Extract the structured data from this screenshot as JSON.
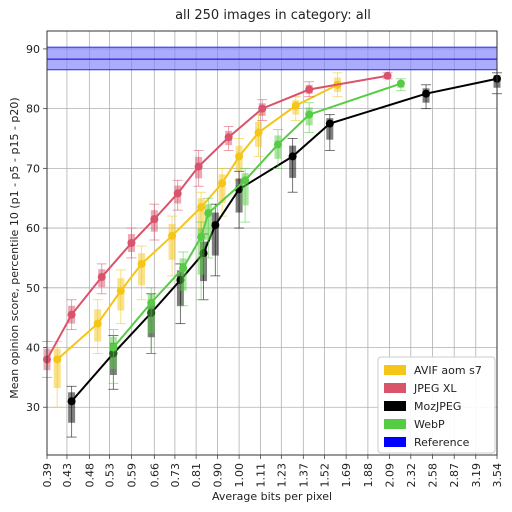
{
  "chart_data": {
    "type": "line",
    "title": "all 250 images in category: all",
    "xlabel": "Average bits per pixel",
    "ylabel": "Mean opinion score, percentile 10 (p1 - p5 - p15 - p20)",
    "x_ticks": [
      "0.39",
      "0.43",
      "0.48",
      "0.53",
      "0.59",
      "0.66",
      "0.73",
      "0.81",
      "0.90",
      "1.00",
      "1.11",
      "1.23",
      "1.37",
      "1.52",
      "1.69",
      "1.88",
      "2.09",
      "2.32",
      "2.58",
      "2.87",
      "3.19",
      "3.54"
    ],
    "x_scale": "log",
    "xlim": [
      0.39,
      3.54
    ],
    "ylim": [
      22,
      93
    ],
    "y_ticks": [
      30,
      40,
      50,
      60,
      70,
      80,
      90
    ],
    "grid": true,
    "legend_position": "bottom-right",
    "reference_band": {
      "name": "Reference",
      "low": 86.5,
      "high": 90.3,
      "center": 88.3,
      "color": "#0000ff"
    },
    "series": [
      {
        "name": "AVIF aom s7",
        "color": "#f5c518",
        "points": [
          {
            "x": 0.41,
            "y": 38,
            "p1": 30,
            "p20": 41
          },
          {
            "x": 0.5,
            "y": 44,
            "p1": 39,
            "p20": 48
          },
          {
            "x": 0.56,
            "y": 49.5,
            "p1": 44,
            "p20": 53
          },
          {
            "x": 0.62,
            "y": 54,
            "p1": 48,
            "p20": 57
          },
          {
            "x": 0.72,
            "y": 58.7,
            "p1": 52,
            "p20": 62
          },
          {
            "x": 0.83,
            "y": 63.5,
            "p1": 55,
            "p20": 66
          },
          {
            "x": 0.92,
            "y": 67.5,
            "p1": 62,
            "p20": 70
          },
          {
            "x": 1.0,
            "y": 72,
            "p1": 68,
            "p20": 75
          },
          {
            "x": 1.1,
            "y": 76,
            "p1": 72,
            "p20": 79
          },
          {
            "x": 1.32,
            "y": 80.5,
            "p1": 78,
            "p20": 82
          },
          {
            "x": 1.62,
            "y": 84,
            "p1": 82,
            "p20": 86
          }
        ]
      },
      {
        "name": "JPEG XL",
        "color": "#d9536a",
        "points": [
          {
            "x": 0.39,
            "y": 38,
            "p1": 35,
            "p20": 41
          },
          {
            "x": 0.44,
            "y": 45.5,
            "p1": 43,
            "p20": 48
          },
          {
            "x": 0.51,
            "y": 51.8,
            "p1": 49,
            "p20": 54
          },
          {
            "x": 0.59,
            "y": 57.5,
            "p1": 55,
            "p20": 60
          },
          {
            "x": 0.66,
            "y": 61.5,
            "p1": 58,
            "p20": 64
          },
          {
            "x": 0.74,
            "y": 65.8,
            "p1": 63,
            "p20": 68
          },
          {
            "x": 0.82,
            "y": 70.3,
            "p1": 67,
            "p20": 73
          },
          {
            "x": 0.95,
            "y": 75.2,
            "p1": 73,
            "p20": 77
          },
          {
            "x": 1.12,
            "y": 80,
            "p1": 78,
            "p20": 81.5
          },
          {
            "x": 1.41,
            "y": 83.2,
            "p1": 82,
            "p20": 84.5
          },
          {
            "x": 2.07,
            "y": 85.5,
            "p1": 85,
            "p20": 86
          }
        ]
      },
      {
        "name": "MozJPEG",
        "color": "#000000",
        "points": [
          {
            "x": 0.44,
            "y": 31,
            "p1": 25,
            "p20": 33.5
          },
          {
            "x": 0.54,
            "y": 39,
            "p1": 33,
            "p20": 42
          },
          {
            "x": 0.65,
            "y": 45.8,
            "p1": 39,
            "p20": 49
          },
          {
            "x": 0.75,
            "y": 51.3,
            "p1": 44,
            "p20": 54
          },
          {
            "x": 0.84,
            "y": 55.8,
            "p1": 48,
            "p20": 59
          },
          {
            "x": 0.89,
            "y": 60.5,
            "p1": 52,
            "p20": 64
          },
          {
            "x": 1.0,
            "y": 66.5,
            "p1": 60,
            "p20": 69.5
          },
          {
            "x": 1.3,
            "y": 72,
            "p1": 66,
            "p20": 75
          },
          {
            "x": 1.56,
            "y": 77.5,
            "p1": 73,
            "p20": 79
          },
          {
            "x": 2.5,
            "y": 82.5,
            "p1": 80,
            "p20": 84
          },
          {
            "x": 3.54,
            "y": 85,
            "p1": 82.5,
            "p20": 86
          }
        ]
      },
      {
        "name": "WebP",
        "color": "#55cc44",
        "points": [
          {
            "x": 0.54,
            "y": 40,
            "p1": 34,
            "p20": 43
          },
          {
            "x": 0.65,
            "y": 47.5,
            "p1": 39,
            "p20": 50
          },
          {
            "x": 0.76,
            "y": 53.3,
            "p1": 47,
            "p20": 56
          },
          {
            "x": 0.83,
            "y": 58.5,
            "p1": 48,
            "p20": 61
          },
          {
            "x": 0.86,
            "y": 62.5,
            "p1": 55,
            "p20": 65
          },
          {
            "x": 1.03,
            "y": 68,
            "p1": 61,
            "p20": 70
          },
          {
            "x": 1.21,
            "y": 74,
            "p1": 70,
            "p20": 76.5
          },
          {
            "x": 1.41,
            "y": 79,
            "p1": 76,
            "p20": 81
          },
          {
            "x": 2.21,
            "y": 84.2,
            "p1": 83,
            "p20": 85
          }
        ]
      }
    ],
    "legend": [
      {
        "name": "AVIF aom s7",
        "color": "#f5c518"
      },
      {
        "name": "JPEG XL",
        "color": "#d9536a"
      },
      {
        "name": "MozJPEG",
        "color": "#000000"
      },
      {
        "name": "WebP",
        "color": "#55cc44"
      },
      {
        "name": "Reference",
        "color": "#0000ff"
      }
    ]
  }
}
